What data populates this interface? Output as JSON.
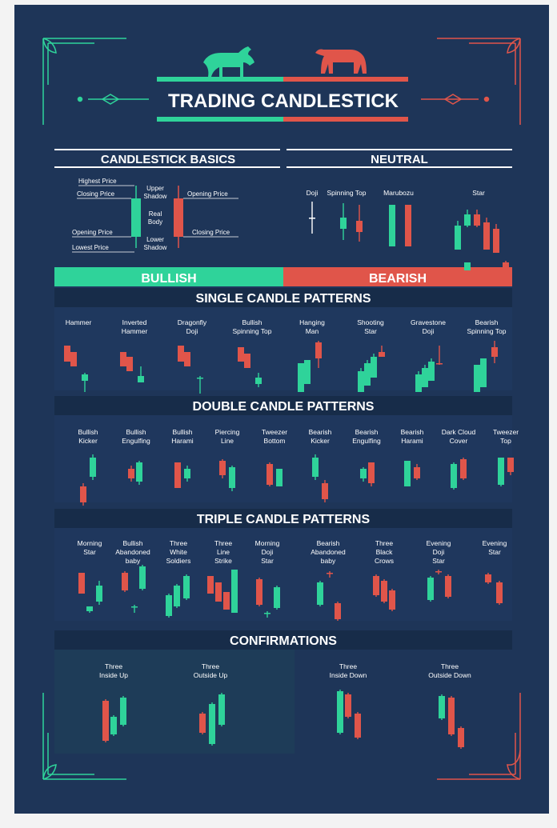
{
  "title": "TRADING CANDLESTICK",
  "colors": {
    "bg": "#1e3558",
    "bull": "#2fd39a",
    "bear": "#e0554a",
    "band": "#172c49",
    "text": "#ffffff"
  },
  "icons": [
    "bull-icon",
    "bear-icon"
  ],
  "sections": {
    "basics": "CANDLESTICK BASICS",
    "neutral": "NEUTRAL",
    "bullish": "BULLISH",
    "bearish": "BEARISH",
    "single": "SINGLE CANDLE PATTERNS",
    "double": "DOUBLE CANDLE PATTERNS",
    "triple": "TRIPLE CANDLE PATTERNS",
    "confirm": "CONFIRMATIONS"
  },
  "basics": {
    "highest": "Highest Price",
    "closing_left": "Closing Price",
    "opening_left": "Opening Price",
    "lowest": "Lowest Price",
    "upper_shadow": [
      "Upper",
      "Shadow"
    ],
    "real_body": [
      "Real",
      "Body"
    ],
    "lower_shadow": [
      "Lower",
      "Shadow"
    ],
    "opening_right": "Opening Price",
    "closing_right": "Closing Price"
  },
  "neutral": [
    {
      "label": [
        "Doji"
      ]
    },
    {
      "label": [
        "Spinning Top"
      ]
    },
    {
      "label": [
        "Marubozu"
      ]
    },
    {
      "label": [
        "Star"
      ]
    }
  ],
  "single": [
    {
      "label": [
        "Hammer"
      ]
    },
    {
      "label": [
        "Inverted",
        "Hammer"
      ]
    },
    {
      "label": [
        "Dragonfly",
        "Doji"
      ]
    },
    {
      "label": [
        "Bullish",
        "Spinning Top"
      ]
    },
    {
      "label": [
        "Hanging",
        "Man"
      ]
    },
    {
      "label": [
        "Shooting",
        "Star"
      ]
    },
    {
      "label": [
        "Gravestone",
        "Doji"
      ]
    },
    {
      "label": [
        "Bearish",
        "Spinning Top"
      ]
    }
  ],
  "double": [
    {
      "label": [
        "Bullish",
        "Kicker"
      ]
    },
    {
      "label": [
        "Bullish",
        "Engulfing"
      ]
    },
    {
      "label": [
        "Bullish",
        "Harami"
      ]
    },
    {
      "label": [
        "Piercing",
        "Line"
      ]
    },
    {
      "label": [
        "Tweezer",
        "Bottom"
      ]
    },
    {
      "label": [
        "Bearish",
        "Kicker"
      ]
    },
    {
      "label": [
        "Bearish",
        "Engulfing"
      ]
    },
    {
      "label": [
        "Bearish",
        "Harami"
      ]
    },
    {
      "label": [
        "Dark Cloud",
        "Cover"
      ]
    },
    {
      "label": [
        "Tweezer",
        "Top"
      ]
    }
  ],
  "triple": [
    {
      "label": [
        "Morning",
        "Star"
      ]
    },
    {
      "label": [
        "Bullish",
        "Abandoned",
        "baby"
      ]
    },
    {
      "label": [
        "Three",
        "White",
        "Soldiers"
      ]
    },
    {
      "label": [
        "Three",
        "Line",
        "Strike"
      ]
    },
    {
      "label": [
        "Morning",
        "Doji",
        "Star"
      ]
    },
    {
      "label": [
        "Bearish",
        "Abandoned",
        "baby"
      ]
    },
    {
      "label": [
        "Three",
        "Black",
        "Crows"
      ]
    },
    {
      "label": [
        "Evening",
        "Doji",
        "Star"
      ]
    },
    {
      "label": [
        "Evening",
        "Star"
      ]
    }
  ],
  "confirm": [
    {
      "label": [
        "Three",
        "Inside Up"
      ]
    },
    {
      "label": [
        "Three",
        "Outside Up"
      ]
    },
    {
      "label": [
        "Three",
        "Inside Down"
      ]
    },
    {
      "label": [
        "Three",
        "Outside Down"
      ]
    }
  ]
}
